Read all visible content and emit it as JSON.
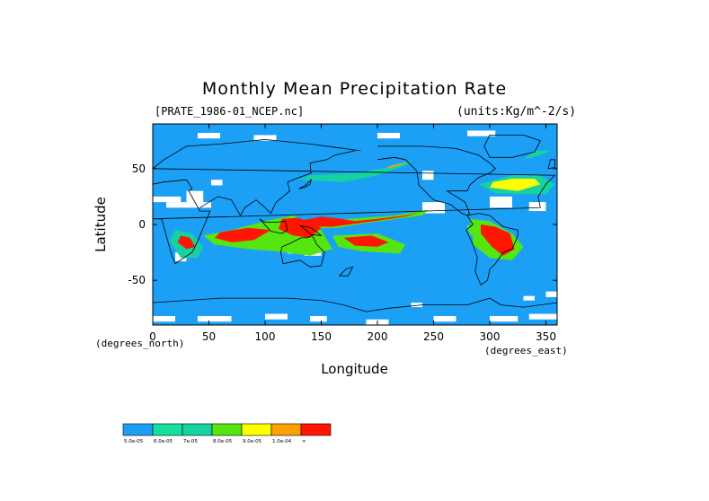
{
  "header": {
    "title": "Monthly Mean Precipitation Rate",
    "file_label": "[PRATE_1986-01_NCEP.nc]",
    "units_label": "(units:Kg/m^-2/s)"
  },
  "chart_data": {
    "type": "heatmap",
    "title": "Monthly Mean Precipitation Rate",
    "xlabel": "Longitude",
    "ylabel": "Latitude",
    "x_unit_label": "(degrees_north)",
    "y_unit_label": "(degrees_east)",
    "xlim": [
      0,
      360
    ],
    "ylim": [
      -90,
      90
    ],
    "x_ticks": [
      0,
      50,
      100,
      150,
      200,
      250,
      300,
      350
    ],
    "y_ticks": [
      50,
      0,
      -50
    ],
    "background_color": "#1ba0f5",
    "missing_color": "#ffffff",
    "colorbar": {
      "colors": [
        "#1ba0f5",
        "#15e0a0",
        "#15d2a0",
        "#55e610",
        "#ffff00",
        "#ff9f00",
        "#ff1500"
      ],
      "labels": [
        "5.0e-05",
        "6.0e-05",
        "7e-05",
        "8.0e-05",
        "9.0e-05",
        "1.0e-04",
        "∞"
      ]
    },
    "regions": [
      {
        "level": 2,
        "points": [
          [
            330,
            27
          ],
          [
            350,
            27
          ],
          [
            358,
            36
          ],
          [
            345,
            44
          ],
          [
            320,
            44
          ],
          [
            290,
            36
          ],
          [
            305,
            28
          ]
        ]
      },
      {
        "level": 4,
        "points": [
          [
            300,
            33
          ],
          [
            325,
            30
          ],
          [
            345,
            36
          ],
          [
            340,
            41
          ],
          [
            320,
            41
          ],
          [
            303,
            38
          ]
        ]
      },
      {
        "level": 2,
        "points": [
          [
            130,
            40
          ],
          [
            170,
            38
          ],
          [
            200,
            44
          ],
          [
            225,
            53
          ],
          [
            232,
            58
          ],
          [
            215,
            52
          ],
          [
            180,
            46
          ],
          [
            140,
            44
          ]
        ]
      },
      {
        "level": 5,
        "points": [
          [
            208,
            50
          ],
          [
            220,
            53
          ],
          [
            228,
            58
          ],
          [
            222,
            55
          ],
          [
            210,
            52
          ]
        ]
      },
      {
        "level": 3,
        "points": [
          [
            120,
            3
          ],
          [
            175,
            5
          ],
          [
            215,
            8
          ],
          [
            245,
            13
          ],
          [
            240,
            8
          ],
          [
            195,
            2
          ],
          [
            165,
            -3
          ],
          [
            125,
            -4
          ]
        ]
      },
      {
        "level": 6,
        "points": [
          [
            130,
            3
          ],
          [
            150,
            7
          ],
          [
            168,
            5
          ],
          [
            180,
            3
          ],
          [
            200,
            5
          ],
          [
            225,
            8
          ],
          [
            240,
            12
          ],
          [
            225,
            7
          ],
          [
            190,
            2
          ],
          [
            160,
            -2
          ],
          [
            130,
            -2
          ]
        ]
      },
      {
        "level": 3,
        "points": [
          [
            70,
            -5
          ],
          [
            100,
            3
          ],
          [
            125,
            8
          ],
          [
            150,
            -5
          ],
          [
            160,
            -22
          ],
          [
            140,
            -28
          ],
          [
            110,
            -24
          ],
          [
            85,
            -22
          ],
          [
            55,
            -18
          ],
          [
            45,
            -10
          ]
        ]
      },
      {
        "level": 6,
        "points": [
          [
            60,
            -7
          ],
          [
            85,
            -3
          ],
          [
            105,
            -5
          ],
          [
            90,
            -14
          ],
          [
            70,
            -16
          ],
          [
            55,
            -12
          ]
        ]
      },
      {
        "level": 6,
        "points": [
          [
            115,
            5
          ],
          [
            130,
            6
          ],
          [
            150,
            -3
          ],
          [
            140,
            -12
          ],
          [
            125,
            -10
          ],
          [
            112,
            -4
          ]
        ]
      },
      {
        "level": 3,
        "points": [
          [
            160,
            -10
          ],
          [
            200,
            -8
          ],
          [
            225,
            -18
          ],
          [
            220,
            -26
          ],
          [
            185,
            -24
          ],
          [
            165,
            -20
          ]
        ]
      },
      {
        "level": 6,
        "points": [
          [
            170,
            -12
          ],
          [
            195,
            -10
          ],
          [
            210,
            -16
          ],
          [
            200,
            -20
          ],
          [
            180,
            -19
          ]
        ]
      },
      {
        "level": 2,
        "points": [
          [
            20,
            -5
          ],
          [
            35,
            -8
          ],
          [
            45,
            -20
          ],
          [
            40,
            -30
          ],
          [
            25,
            -30
          ],
          [
            15,
            -15
          ]
        ]
      },
      {
        "level": 6,
        "points": [
          [
            25,
            -10
          ],
          [
            33,
            -12
          ],
          [
            38,
            -20
          ],
          [
            30,
            -22
          ],
          [
            22,
            -16
          ]
        ]
      },
      {
        "level": 3,
        "points": [
          [
            282,
            5
          ],
          [
            300,
            3
          ],
          [
            320,
            -8
          ],
          [
            330,
            -20
          ],
          [
            320,
            -32
          ],
          [
            300,
            -30
          ],
          [
            285,
            -18
          ],
          [
            285,
            -5
          ]
        ]
      },
      {
        "level": 6,
        "points": [
          [
            292,
            0
          ],
          [
            305,
            -2
          ],
          [
            318,
            -8
          ],
          [
            322,
            -22
          ],
          [
            312,
            -28
          ],
          [
            302,
            -20
          ],
          [
            292,
            -8
          ]
        ]
      },
      {
        "level": 3,
        "points": [
          [
            280,
            0
          ],
          [
            288,
            -5
          ],
          [
            284,
            -10
          ],
          [
            280,
            -5
          ]
        ]
      },
      {
        "level": 2,
        "points": [
          [
            330,
            58
          ],
          [
            345,
            62
          ],
          [
            355,
            66
          ],
          [
            340,
            66
          ]
        ]
      }
    ],
    "missing_patches": [
      [
        0,
        25,
        25,
        5
      ],
      [
        30,
        30,
        15,
        10
      ],
      [
        52,
        40,
        10,
        5
      ],
      [
        12,
        20,
        40,
        5
      ],
      [
        335,
        20,
        15,
        8
      ],
      [
        240,
        20,
        20,
        10
      ],
      [
        240,
        48,
        10,
        8
      ],
      [
        300,
        25,
        20,
        10
      ],
      [
        40,
        82,
        20,
        5
      ],
      [
        90,
        80,
        20,
        5
      ],
      [
        200,
        82,
        20,
        5
      ],
      [
        280,
        84,
        25,
        5
      ],
      [
        135,
        -18,
        15,
        10
      ],
      [
        120,
        -20,
        10,
        6
      ],
      [
        20,
        -25,
        10,
        8
      ],
      [
        0,
        -82,
        20,
        5
      ],
      [
        40,
        -82,
        30,
        5
      ],
      [
        100,
        -80,
        20,
        5
      ],
      [
        140,
        -82,
        15,
        5
      ],
      [
        190,
        -85,
        20,
        5
      ],
      [
        250,
        -82,
        20,
        5
      ],
      [
        300,
        -82,
        25,
        5
      ],
      [
        335,
        -80,
        25,
        5
      ],
      [
        350,
        -60,
        10,
        5
      ],
      [
        330,
        -64,
        10,
        4
      ],
      [
        230,
        -70,
        10,
        4
      ]
    ]
  }
}
